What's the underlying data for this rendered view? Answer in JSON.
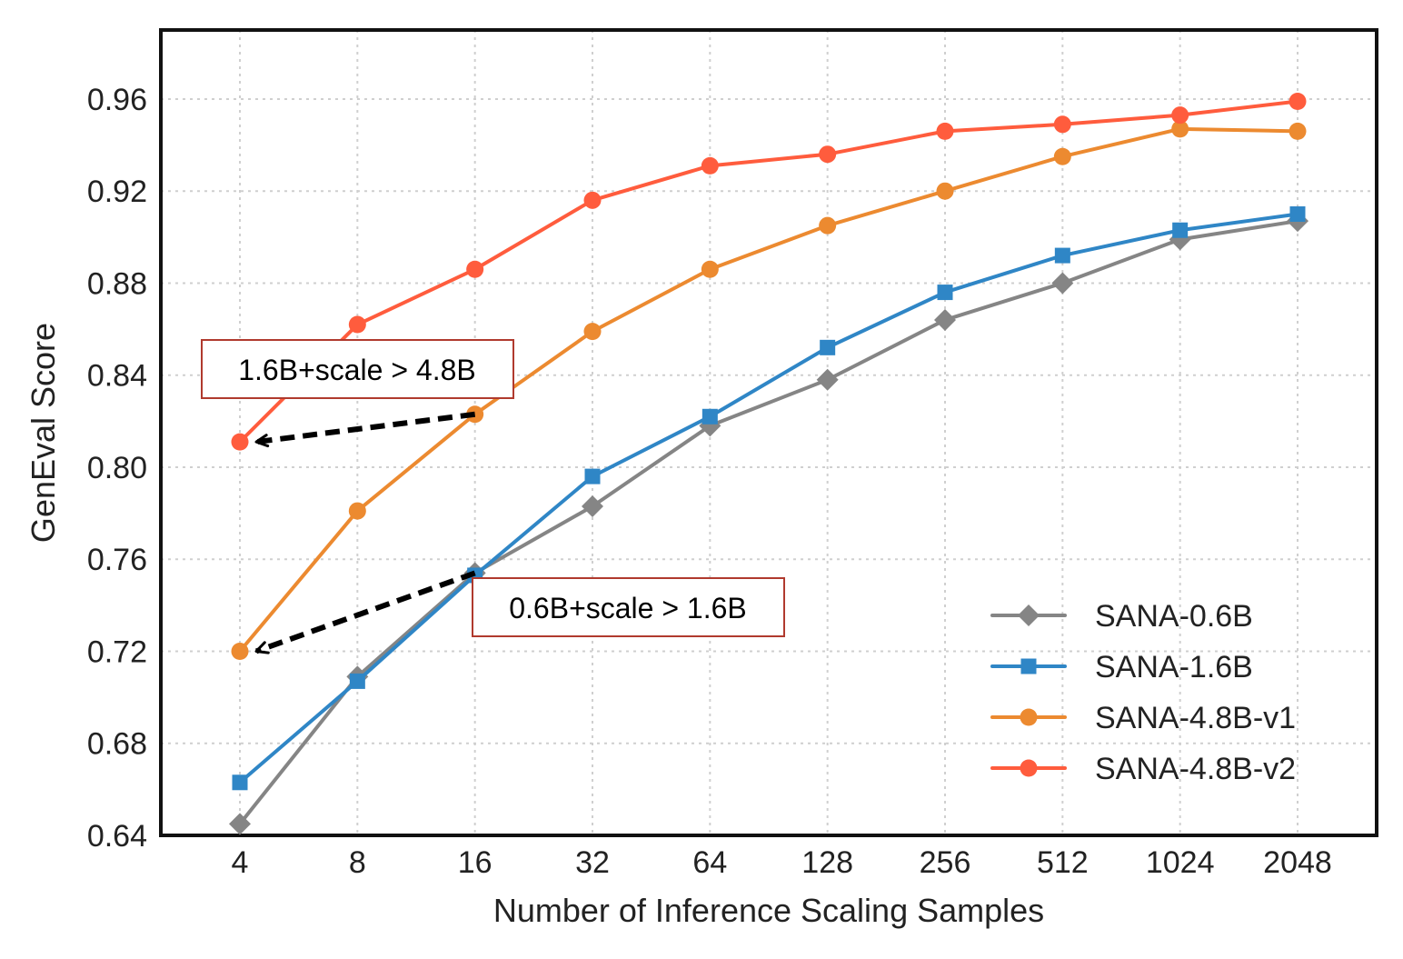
{
  "chart_data": {
    "type": "line",
    "title": "",
    "xlabel": "Number of Inference Scaling Samples",
    "ylabel": "GenEval Score",
    "categories": [
      "4",
      "8",
      "16",
      "32",
      "64",
      "128",
      "256",
      "512",
      "1024",
      "2048"
    ],
    "ylim": [
      0.64,
      0.99
    ],
    "yticks": [
      0.64,
      0.68,
      0.72,
      0.76,
      0.8,
      0.84,
      0.88,
      0.92,
      0.96
    ],
    "ytick_labels": [
      "0.64",
      "0.68",
      "0.72",
      "0.76",
      "0.80",
      "0.84",
      "0.88",
      "0.92",
      "0.96"
    ],
    "grid": true,
    "legend_position": "lower-right",
    "series": [
      {
        "name": "SANA-0.6B",
        "color": "#858585",
        "marker": "diamond",
        "values": [
          0.645,
          0.709,
          0.754,
          0.783,
          0.818,
          0.838,
          0.864,
          0.88,
          0.899,
          0.907
        ]
      },
      {
        "name": "SANA-1.6B",
        "color": "#2f86c6",
        "marker": "square",
        "values": [
          0.663,
          0.707,
          0.753,
          0.796,
          0.822,
          0.852,
          0.876,
          0.892,
          0.903,
          0.91
        ]
      },
      {
        "name": "SANA-4.8B-v1",
        "color": "#ec8a30",
        "marker": "circle",
        "values": [
          0.72,
          0.781,
          0.823,
          0.859,
          0.886,
          0.905,
          0.92,
          0.935,
          0.947,
          0.946
        ]
      },
      {
        "name": "SANA-4.8B-v2",
        "color": "#ff5c3d",
        "marker": "circle",
        "values": [
          0.811,
          0.862,
          0.886,
          0.916,
          0.931,
          0.936,
          0.946,
          0.949,
          0.953,
          0.959
        ]
      }
    ],
    "annotations": [
      {
        "text": "1.6B+scale > 4.8B",
        "from": {
          "x_category": "16",
          "y": 0.823
        },
        "to": {
          "x_category": "4",
          "y": 0.811
        }
      },
      {
        "text": "0.6B+scale > 1.6B",
        "from": {
          "x_category": "16",
          "y": 0.754
        },
        "to": {
          "x_category": "4",
          "y": 0.72
        }
      }
    ]
  }
}
